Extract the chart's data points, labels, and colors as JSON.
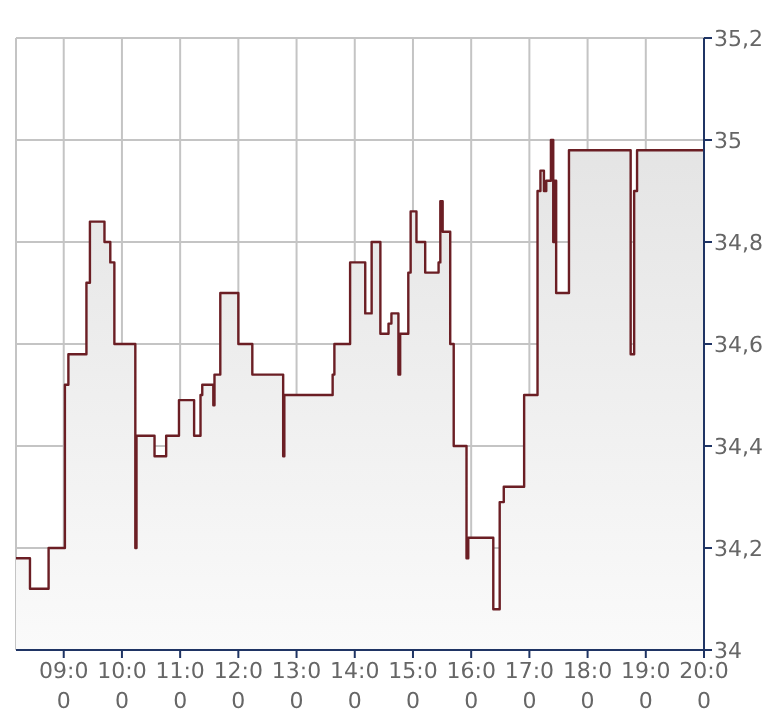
{
  "chart_data": {
    "type": "area",
    "xlim": [
      8.18,
      20
    ],
    "ylim": [
      34,
      35.2
    ],
    "xticks": [
      {
        "value": 9,
        "label": "09:00"
      },
      {
        "value": 10,
        "label": "10:00"
      },
      {
        "value": 11,
        "label": "11:00"
      },
      {
        "value": 12,
        "label": "12:00"
      },
      {
        "value": 13,
        "label": "13:00"
      },
      {
        "value": 14,
        "label": "14:00"
      },
      {
        "value": 15,
        "label": "15:00"
      },
      {
        "value": 16,
        "label": "16:00"
      },
      {
        "value": 17,
        "label": "17:00"
      },
      {
        "value": 18,
        "label": "18:00"
      },
      {
        "value": 19,
        "label": "19:00"
      },
      {
        "value": 20,
        "label": "20:00"
      }
    ],
    "yticks": [
      34,
      {
        "value": 34.2,
        "label": "34,2"
      },
      {
        "value": 34.4,
        "label": "34,4"
      },
      {
        "value": 34.6,
        "label": "34,6"
      },
      {
        "value": 34.8,
        "label": "34,8"
      },
      35,
      {
        "value": 35.2,
        "label": "35,2"
      }
    ],
    "grid": true,
    "series": [
      {
        "color": "#6b1e24",
        "x": [
          8.18,
          8.42,
          8.42,
          8.74,
          8.74,
          9.02,
          9.02,
          9.08,
          9.08,
          9.39,
          9.39,
          9.45,
          9.45,
          9.7,
          9.7,
          9.8,
          9.8,
          9.87,
          9.87,
          10.23,
          10.23,
          10.25,
          10.25,
          10.56,
          10.56,
          10.76,
          10.76,
          10.98,
          10.98,
          11.24,
          11.24,
          11.35,
          11.35,
          11.38,
          11.38,
          11.57,
          11.57,
          11.59,
          11.59,
          11.69,
          11.69,
          12.0,
          12.0,
          12.24,
          12.24,
          12.77,
          12.77,
          12.79,
          12.79,
          13.62,
          13.62,
          13.65,
          13.65,
          13.92,
          13.92,
          14.18,
          14.18,
          14.29,
          14.29,
          14.44,
          14.44,
          14.58,
          14.58,
          14.63,
          14.63,
          14.75,
          14.75,
          14.78,
          14.78,
          14.92,
          14.92,
          14.96,
          14.96,
          15.06,
          15.06,
          15.21,
          15.21,
          15.44,
          15.44,
          15.47,
          15.47,
          15.51,
          15.51,
          15.64,
          15.64,
          15.7,
          15.7,
          15.92,
          15.92,
          15.95,
          15.95,
          16.38,
          16.38,
          16.49,
          16.49,
          16.56,
          16.56,
          16.91,
          16.91,
          17.14,
          17.14,
          17.19,
          17.19,
          17.25,
          17.25,
          17.29,
          17.29,
          17.37,
          17.37,
          17.41,
          17.41,
          17.43,
          17.43,
          17.46,
          17.46,
          17.68,
          17.68,
          18.74,
          18.74,
          18.8,
          18.8,
          18.85,
          18.85,
          20
        ],
        "values": [
          34.18,
          34.18,
          34.12,
          34.12,
          34.2,
          34.2,
          34.52,
          34.52,
          34.58,
          34.58,
          34.72,
          34.72,
          34.84,
          34.84,
          34.8,
          34.8,
          34.76,
          34.76,
          34.6,
          34.6,
          34.2,
          34.2,
          34.42,
          34.42,
          34.38,
          34.38,
          34.42,
          34.42,
          34.49,
          34.49,
          34.42,
          34.42,
          34.5,
          34.5,
          34.52,
          34.52,
          34.48,
          34.48,
          34.54,
          34.54,
          34.7,
          34.7,
          34.6,
          34.6,
          34.54,
          34.54,
          34.38,
          34.38,
          34.5,
          34.5,
          34.54,
          34.54,
          34.6,
          34.6,
          34.76,
          34.76,
          34.66,
          34.66,
          34.8,
          34.8,
          34.62,
          34.62,
          34.64,
          34.64,
          34.66,
          34.66,
          34.54,
          34.54,
          34.62,
          34.62,
          34.74,
          34.74,
          34.86,
          34.86,
          34.8,
          34.8,
          34.74,
          34.74,
          34.76,
          34.76,
          34.88,
          34.88,
          34.82,
          34.82,
          34.6,
          34.6,
          34.4,
          34.4,
          34.18,
          34.18,
          34.22,
          34.22,
          34.08,
          34.08,
          34.29,
          34.29,
          34.32,
          34.32,
          34.5,
          34.5,
          34.9,
          34.9,
          34.94,
          34.94,
          34.9,
          34.9,
          34.92,
          34.92,
          35.0,
          35.0,
          34.8,
          34.8,
          34.92,
          34.92,
          34.7,
          34.7,
          34.98,
          34.98,
          34.58,
          34.58,
          34.9,
          34.9,
          34.98,
          34.98
        ]
      }
    ]
  }
}
